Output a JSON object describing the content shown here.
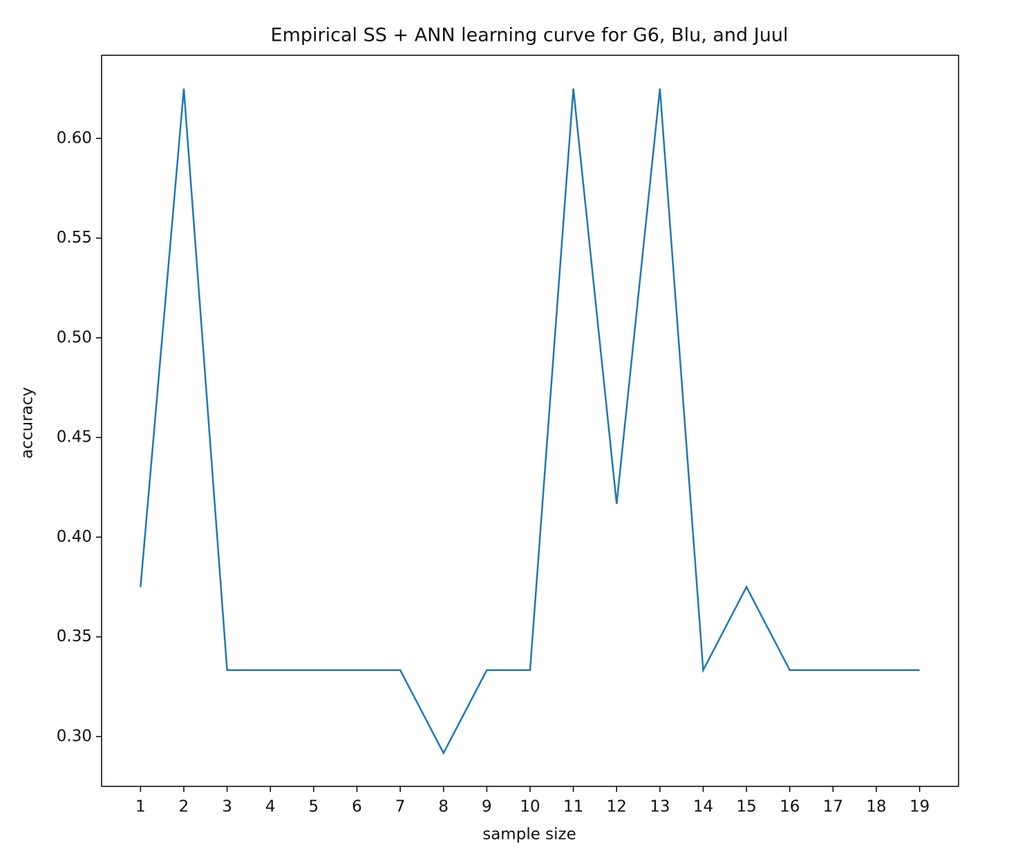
{
  "chart_data": {
    "type": "line",
    "title": "Empirical SS + ANN learning curve for G6, Blu, and Juul",
    "xlabel": "sample size",
    "ylabel": "accuracy",
    "x": [
      1,
      2,
      3,
      4,
      5,
      6,
      7,
      8,
      9,
      10,
      11,
      12,
      13,
      14,
      15,
      16,
      17,
      18,
      19
    ],
    "series": [
      {
        "color": "#1f77b4",
        "values": [
          0.375,
          0.625,
          0.3333,
          0.3333,
          0.3333,
          0.3333,
          0.3333,
          0.2917,
          0.3333,
          0.3333,
          0.625,
          0.4167,
          0.625,
          0.3333,
          0.375,
          0.3333,
          0.3333,
          0.3333,
          0.3333
        ]
      }
    ],
    "xlim": [
      0.1,
      19.9
    ],
    "ylim": [
      0.275,
      0.6417
    ],
    "xticks": [
      1,
      2,
      3,
      4,
      5,
      6,
      7,
      8,
      9,
      10,
      11,
      12,
      13,
      14,
      15,
      16,
      17,
      18,
      19
    ],
    "yticks": [
      {
        "value": 0.3,
        "label": "0.30"
      },
      {
        "value": 0.35,
        "label": "0.35"
      },
      {
        "value": 0.4,
        "label": "0.40"
      },
      {
        "value": 0.45,
        "label": "0.45"
      },
      {
        "value": 0.5,
        "label": "0.50"
      },
      {
        "value": 0.55,
        "label": "0.55"
      },
      {
        "value": 0.6,
        "label": "0.60"
      }
    ],
    "grid": false
  }
}
